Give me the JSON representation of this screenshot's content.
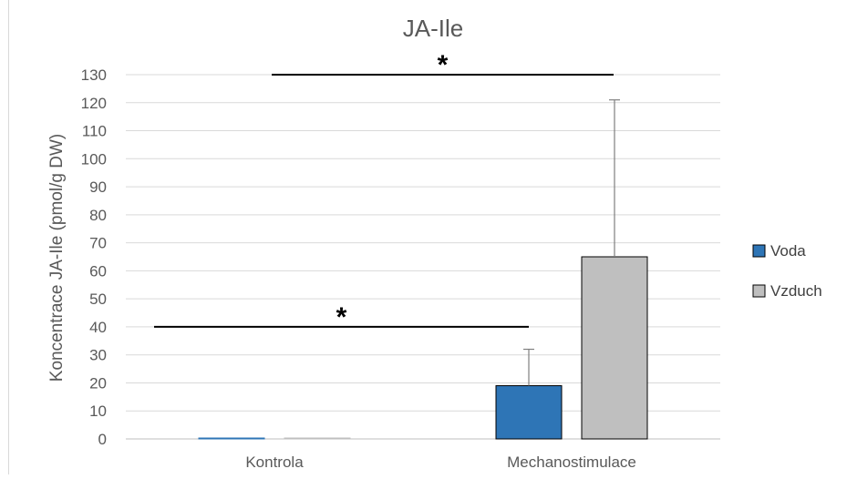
{
  "chart_data": {
    "type": "bar",
    "title": "JA-Ile",
    "xlabel": "",
    "ylabel": "Koncentrace JA-Ile (pmol/g DW)",
    "ylim": [
      0,
      130
    ],
    "ytick_step": 10,
    "grid": true,
    "legend_position": "right",
    "categories": [
      "Kontrola",
      "Mechanostimulace"
    ],
    "series": [
      {
        "name": "Voda",
        "color": "#2e75b6",
        "values": [
          0,
          19
        ],
        "error": [
          0,
          13
        ]
      },
      {
        "name": "Vzduch",
        "color": "#bfbfbf",
        "values": [
          0,
          65
        ],
        "error": [
          0,
          56
        ]
      }
    ],
    "annotations": [
      {
        "text": "*",
        "label": "significance bracket",
        "y": 130,
        "from": "Kontrola / Vzduch",
        "to": "Mechanostimulace / Vzduch"
      },
      {
        "text": "*",
        "label": "significance bracket",
        "y": 40,
        "from": "Kontrola / Voda",
        "to": "Mechanostimulace / Voda"
      }
    ]
  }
}
